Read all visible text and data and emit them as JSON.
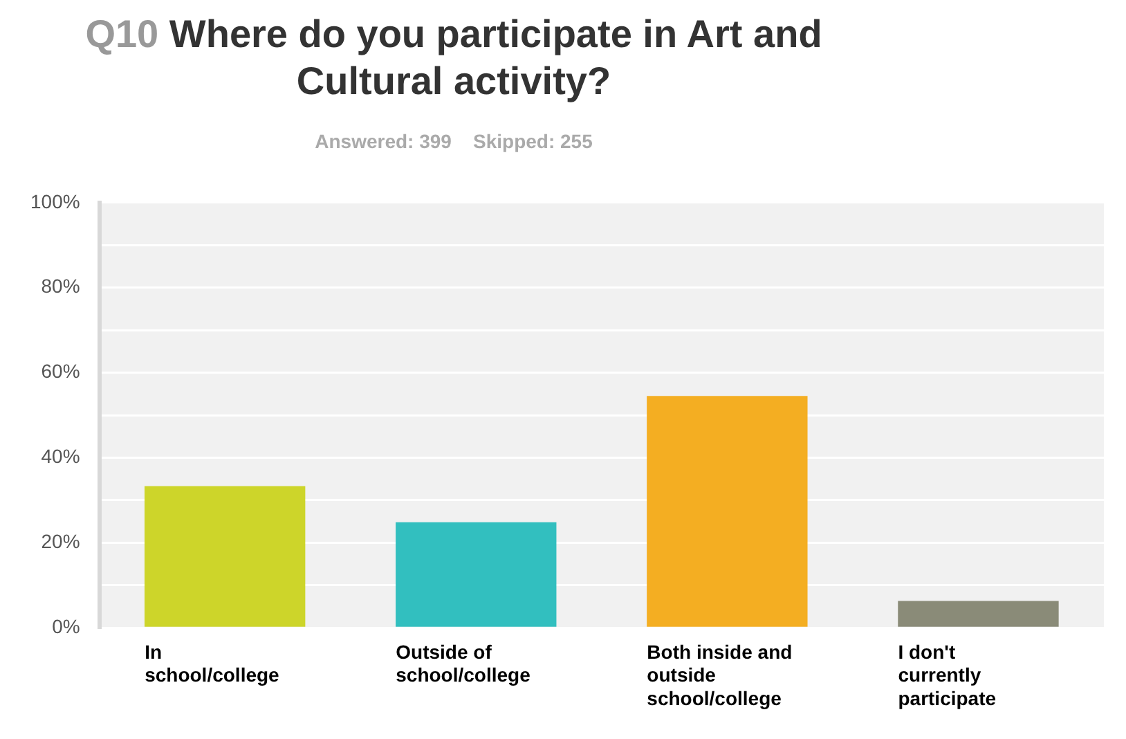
{
  "chart_data": {
    "type": "bar",
    "title": "Q10 Where do you participate in Art and Cultural activity?",
    "subtitle": "Answered: 399    Skipped: 255",
    "categories": [
      "In school/college",
      "Outside of school/college",
      "Both inside and outside school/college",
      "I don't currently participate"
    ],
    "values": [
      33.3,
      24.8,
      54.5,
      6.3
    ],
    "colors": [
      "#cdd52a",
      "#32bfbf",
      "#f4ae22",
      "#8a8b78"
    ],
    "ylim": [
      0,
      100
    ],
    "yticks": [
      {
        "value": 0,
        "label": "0%"
      },
      {
        "value": 10,
        "label": null
      },
      {
        "value": 20,
        "label": "20%"
      },
      {
        "value": 30,
        "label": null
      },
      {
        "value": 40,
        "label": "40%"
      },
      {
        "value": 50,
        "label": null
      },
      {
        "value": 60,
        "label": "60%"
      },
      {
        "value": 70,
        "label": null
      },
      {
        "value": 80,
        "label": "80%"
      },
      {
        "value": 90,
        "label": null
      },
      {
        "value": 100,
        "label": "100%"
      }
    ],
    "grid": "y",
    "legend": false
  }
}
